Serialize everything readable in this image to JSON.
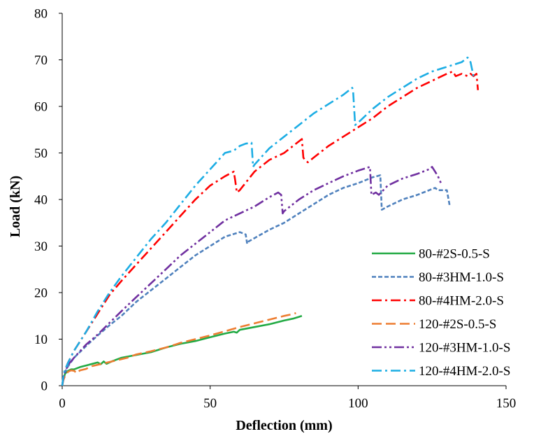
{
  "chart_data": {
    "type": "line",
    "title": "",
    "xlabel": "Deflection (mm)",
    "ylabel": "Load (kN)",
    "xlim": [
      0,
      150
    ],
    "ylim": [
      0,
      80
    ],
    "xticks": [
      0,
      50,
      100,
      150
    ],
    "yticks": [
      0,
      10,
      20,
      30,
      40,
      50,
      60,
      70,
      80
    ],
    "grid": false,
    "legend_position": "bottom-right",
    "series": [
      {
        "name": "80-#2S-0.5-S",
        "color": "#22AA44",
        "dash": "solid",
        "x": [
          0,
          0.4,
          1,
          2,
          3,
          4,
          6,
          9,
          12,
          13,
          14,
          15,
          17,
          20,
          25,
          30,
          35,
          40,
          45,
          50,
          55,
          58,
          59,
          60,
          65,
          70,
          75,
          78,
          80,
          81
        ],
        "y": [
          0,
          1.5,
          2.6,
          3.2,
          3.5,
          3.5,
          4,
          4.5,
          5,
          4.6,
          5.2,
          4.7,
          5.3,
          6,
          6.6,
          7.2,
          8.2,
          9,
          9.6,
          10.4,
          11.2,
          11.6,
          11.4,
          12,
          12.6,
          13.2,
          14,
          14.4,
          14.8,
          15
        ]
      },
      {
        "name": "80-#3HM-1.0-S",
        "color": "#4F81BD",
        "dash": "short-dash",
        "x": [
          0,
          0.5,
          1,
          2,
          4,
          8,
          12,
          16,
          20,
          25,
          30,
          35,
          40,
          45,
          50,
          55,
          60,
          62,
          62.5,
          63,
          70,
          75,
          80,
          85,
          90,
          95,
          100,
          105,
          107.5,
          108,
          110,
          115,
          120,
          126,
          127,
          130,
          131
        ],
        "y": [
          0,
          2,
          3,
          4.2,
          6,
          8.5,
          10.8,
          13,
          15,
          18,
          20.5,
          23,
          25.5,
          28,
          30,
          32,
          33,
          32.5,
          30.5,
          31,
          33.5,
          35,
          37,
          39,
          41,
          42.5,
          43.5,
          44.8,
          45.2,
          37.8,
          38.5,
          40,
          41,
          42.5,
          42,
          42,
          38.5
        ]
      },
      {
        "name": "80-#4HM-2.0-S",
        "color": "#FF0000",
        "dash": "dash-dot",
        "x": [
          0,
          0.5,
          1,
          2,
          4,
          8,
          12,
          16,
          20,
          25,
          30,
          35,
          40,
          45,
          50,
          55,
          58,
          58.5,
          59,
          60,
          65,
          70,
          75,
          80,
          81,
          81.5,
          82,
          83,
          85,
          90,
          95,
          100,
          105,
          110,
          115,
          120,
          125,
          130,
          132,
          133,
          135,
          137,
          138,
          139,
          140,
          140.5
        ],
        "y": [
          0,
          2.5,
          3.5,
          5,
          7.5,
          11.5,
          15.5,
          19.5,
          22.5,
          26,
          29.5,
          33,
          36.5,
          40,
          43,
          45,
          46,
          44,
          41.5,
          42,
          46,
          48.5,
          50,
          52.5,
          53,
          49,
          48.5,
          48,
          49,
          51.5,
          53.5,
          55.5,
          57.5,
          60,
          62,
          64,
          65.5,
          67,
          67.5,
          66.5,
          67,
          66.5,
          67,
          66.5,
          67,
          63.5
        ]
      },
      {
        "name": "120-#2S-0.5-S",
        "color": "#ED7D31",
        "dash": "long-dash",
        "x": [
          0,
          0.4,
          1,
          2,
          3,
          4,
          5,
          6,
          8,
          10,
          14,
          18,
          22,
          25,
          30,
          35,
          40,
          45,
          50,
          55,
          60,
          65,
          70,
          75,
          78,
          79
        ],
        "y": [
          0,
          1.2,
          2.2,
          3,
          3.3,
          3.2,
          2.7,
          3.3,
          3.6,
          4.2,
          4.8,
          5.4,
          6,
          6.7,
          7.4,
          8.2,
          9.2,
          10,
          10.8,
          11.7,
          12.6,
          13.4,
          14.2,
          15,
          15.4,
          15.6
        ]
      },
      {
        "name": "120-#3HM-1.0-S",
        "color": "#7030A0",
        "dash": "dash-dot-dot",
        "x": [
          0,
          0.5,
          1,
          2,
          4,
          8,
          12,
          16,
          20,
          25,
          30,
          35,
          40,
          45,
          50,
          55,
          60,
          65,
          70,
          73,
          74,
          74.5,
          75,
          80,
          85,
          90,
          95,
          100,
          103,
          104,
          104.5,
          106,
          107,
          110,
          115,
          120,
          124,
          125,
          126,
          127,
          128
        ],
        "y": [
          0,
          2,
          3,
          4.5,
          6,
          8.8,
          11,
          13.5,
          16,
          19,
          22,
          25,
          28,
          30.5,
          33,
          35.5,
          37,
          38.5,
          40.5,
          41.5,
          41,
          37,
          37.5,
          40,
          42,
          43.5,
          45,
          46.2,
          46.8,
          47,
          41,
          41.5,
          41,
          43,
          44.5,
          45.5,
          46.5,
          47,
          46,
          45,
          43.5
        ]
      },
      {
        "name": "120-#4HM-2.0-S",
        "color": "#1CADE4",
        "dash": "dash-dot",
        "x": [
          0,
          0.5,
          1,
          2,
          4,
          8,
          12,
          16,
          20,
          25,
          30,
          35,
          40,
          45,
          50,
          55,
          58,
          60,
          62,
          64,
          64.5,
          65,
          70,
          75,
          80,
          85,
          90,
          95,
          98,
          98.3,
          99,
          100,
          105,
          110,
          115,
          120,
          125,
          130,
          135,
          137,
          138,
          139
        ],
        "y": [
          0,
          2.5,
          3.5,
          5,
          7.5,
          11.5,
          16,
          20,
          23.5,
          27.5,
          31.5,
          35,
          39,
          43,
          46.5,
          50,
          50.5,
          51.5,
          52,
          52.2,
          47,
          47.5,
          51,
          53.5,
          56,
          58.5,
          60.5,
          62.5,
          64,
          63.5,
          56,
          56.5,
          59.5,
          62,
          64,
          66,
          67.5,
          68.5,
          69.5,
          70.5,
          69.5,
          66.5
        ]
      }
    ]
  }
}
